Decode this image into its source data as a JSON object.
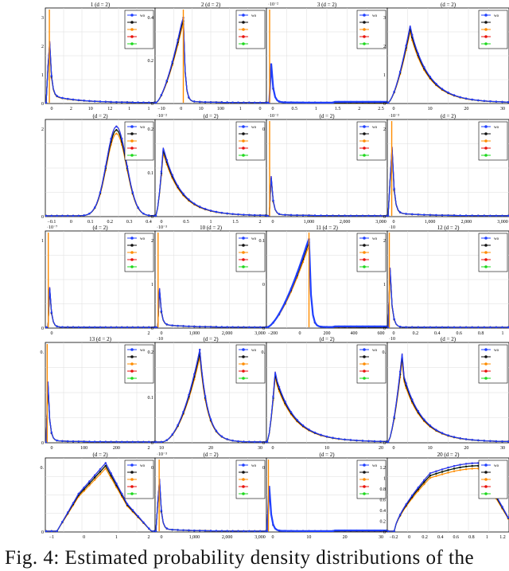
{
  "figure": {
    "caption": "Fig. 4: Estimated probability density distributions of the"
  },
  "chart_data": [
    {
      "type": "line",
      "title": "1 (d = 2)",
      "x_ticks": [
        "0",
        "2",
        "10",
        "12",
        "1",
        "1"
      ],
      "y_ticks": [
        "3",
        "2",
        "1",
        "0"
      ],
      "legend_first": "wo",
      "peak_x": 0.03,
      "tail": 0.25,
      "spike": true
    },
    {
      "type": "line",
      "title": "2 (d = 2)",
      "x_ticks": [
        "−10",
        "0",
        "10",
        "100",
        "1",
        "0"
      ],
      "y_ticks": [
        "0.4",
        "0.2",
        "0"
      ],
      "legend_first": "wo",
      "peak_x": 0.25,
      "tail": 0.05,
      "spike": true
    },
    {
      "type": "line",
      "title": "3 (d = 2)",
      "x_ticks": [
        "0",
        "0.5",
        "1",
        "1.5",
        "2",
        "2.5"
      ],
      "y_ticks": [],
      "exponent": "·10⁻²",
      "legend_first": "wo",
      "peak_x": 0.02,
      "tail": 0.02,
      "spike": true,
      "blue_tail": true
    },
    {
      "type": "line",
      "title": "(d = 2)",
      "x_ticks": [
        "0",
        "10",
        "20",
        "30"
      ],
      "y_ticks": [
        "3",
        "2",
        "1",
        "0"
      ],
      "legend_first": "wo",
      "peak_x": 0.2,
      "tail": 0.35,
      "spike": false
    },
    {
      "type": "line",
      "title": "(d = 2)",
      "x_ticks": [
        "−0.1",
        "0",
        "0.1",
        "0.2",
        "0.3",
        "0.4"
      ],
      "y_ticks": [
        "2",
        "0"
      ],
      "legend_first": "wo",
      "peak_x": 0.65,
      "tail": 0.12,
      "spike": false,
      "bell": true
    },
    {
      "type": "line",
      "title": "(d = 2)",
      "x_ticks": [
        "0",
        "0.5",
        "1",
        "1.5",
        "2"
      ],
      "y_ticks": [
        "0.2",
        "0.1",
        "0"
      ],
      "exponent": "·10⁻²",
      "legend_first": "wo",
      "peak_x": 0.08,
      "tail": 0.45,
      "spike": false
    },
    {
      "type": "line",
      "title": "(d = 2)",
      "x_ticks": [
        "0",
        "1,000",
        "2,000",
        "3,000"
      ],
      "y_ticks": [
        "0"
      ],
      "exponent": "·10⁻²",
      "legend_first": "wo",
      "peak_x": 0.02,
      "tail": 0.05,
      "spike": true
    },
    {
      "type": "line",
      "title": "(d = 2)",
      "x_ticks": [
        "0",
        "1,000",
        "2,000",
        "3,000"
      ],
      "y_ticks": [
        "2",
        "0"
      ],
      "exponent": "·10⁻³",
      "legend_first": "wo",
      "peak_x": 0.03,
      "tail": 0.1,
      "spike": true
    },
    {
      "type": "line",
      "title": "(d = 2)",
      "x_ticks": [
        "0",
        "2"
      ],
      "y_ticks": [
        "1",
        "0"
      ],
      "exponent": "·10⁻⁷",
      "legend_first": "wo",
      "peak_x": 0.02,
      "tail": 0.01,
      "spike": true
    },
    {
      "type": "line",
      "title": "10 (d = 2)",
      "x_ticks": [
        "0",
        "1,000",
        "2,000",
        "3,000"
      ],
      "y_ticks": [
        "2",
        "1",
        "0"
      ],
      "exponent": "·10⁻³",
      "legend_first": "wo",
      "peak_x": 0.02,
      "tail": 0.1,
      "spike": true
    },
    {
      "type": "line",
      "title": "11 (d = 2)",
      "x_ticks": [
        "−200",
        "0",
        "200",
        "400",
        "600"
      ],
      "y_ticks": [
        "0.1",
        "0",
        "0"
      ],
      "legend_first": "wo",
      "peak_x": 0.35,
      "tail": 0.02,
      "spike": true,
      "blue_tail": true
    },
    {
      "type": "line",
      "title": "12 (d = 2)",
      "x_ticks": [
        "0",
        "0.2",
        "0.4",
        "0.6",
        "0.8",
        "1"
      ],
      "y_ticks": [
        "2",
        "1",
        "0"
      ],
      "exponent": "·10",
      "legend_first": "wo",
      "peak_x": 0.01,
      "tail": 0.01,
      "spike": true
    },
    {
      "type": "line",
      "title": "13 (d = 2)",
      "x_ticks": [
        "0",
        "100",
        "200",
        "2"
      ],
      "y_ticks": [
        "0.",
        "0"
      ],
      "legend_first": "wo",
      "peak_x": 0.01,
      "tail": 0.05,
      "spike": true
    },
    {
      "type": "line",
      "title": "(d = 2)",
      "x_ticks": [
        "10",
        "20",
        "30"
      ],
      "y_ticks": [
        "0.2",
        "0.1",
        "0"
      ],
      "exponent": "·10",
      "legend_first": "wo",
      "peak_x": 0.4,
      "tail": 0.25,
      "spike": false,
      "skew": true
    },
    {
      "type": "line",
      "title": "(d = 2)",
      "x_ticks": [
        "0",
        "10",
        "20"
      ],
      "y_ticks": [
        "0.",
        "0"
      ],
      "legend_first": "wo",
      "peak_x": 0.08,
      "tail": 0.5,
      "spike": false
    },
    {
      "type": "line",
      "title": "(d = 2)",
      "x_ticks": [
        "0",
        "10",
        "20",
        "30"
      ],
      "y_ticks": [
        "0.",
        "0"
      ],
      "exponent": "·10",
      "legend_first": "wo",
      "peak_x": 0.12,
      "tail": 0.35,
      "spike": false
    },
    {
      "type": "line",
      "title": "(d = 2)",
      "x_ticks": [
        "−1",
        "0",
        "1",
        "2"
      ],
      "y_ticks": [
        "0.",
        "0"
      ],
      "legend_first": "wo",
      "peak_x": 0.5,
      "tail": 0.25,
      "spike": false,
      "hump": true
    },
    {
      "type": "line",
      "title": "(d = 2)",
      "x_ticks": [
        "0",
        "1,000",
        "2,000",
        "3,000"
      ],
      "y_ticks": [
        "0"
      ],
      "exponent": "·10⁻³",
      "legend_first": "wo",
      "peak_x": 0.03,
      "tail": 0.1,
      "spike": true
    },
    {
      "type": "line",
      "title": "(d = 2)",
      "x_ticks": [
        "0",
        "10",
        "20",
        "30"
      ],
      "y_ticks": [
        "0"
      ],
      "legend_first": "wo",
      "peak_x": 0.01,
      "tail": 0.02,
      "spike": true,
      "blue_tail": true
    },
    {
      "type": "line",
      "title": "20 (d = 2)",
      "x_ticks": [
        "−0.2",
        "0",
        "0.2",
        "0.4",
        "0.6",
        "0.8",
        "1",
        "1.2"
      ],
      "y_ticks": [
        "1.2",
        "1",
        "0.8",
        "0.6",
        "0.4",
        "0.2",
        "0"
      ],
      "legend_first": "wo",
      "peak_x": 0.7,
      "tail": 0.2,
      "spike": false,
      "plateau": true
    }
  ],
  "series_colors": {
    "c0": "#1f3fff",
    "c1": "#111111",
    "c2": "#ff8c00",
    "c3": "#e8120c",
    "c4": "#1ed81e"
  }
}
